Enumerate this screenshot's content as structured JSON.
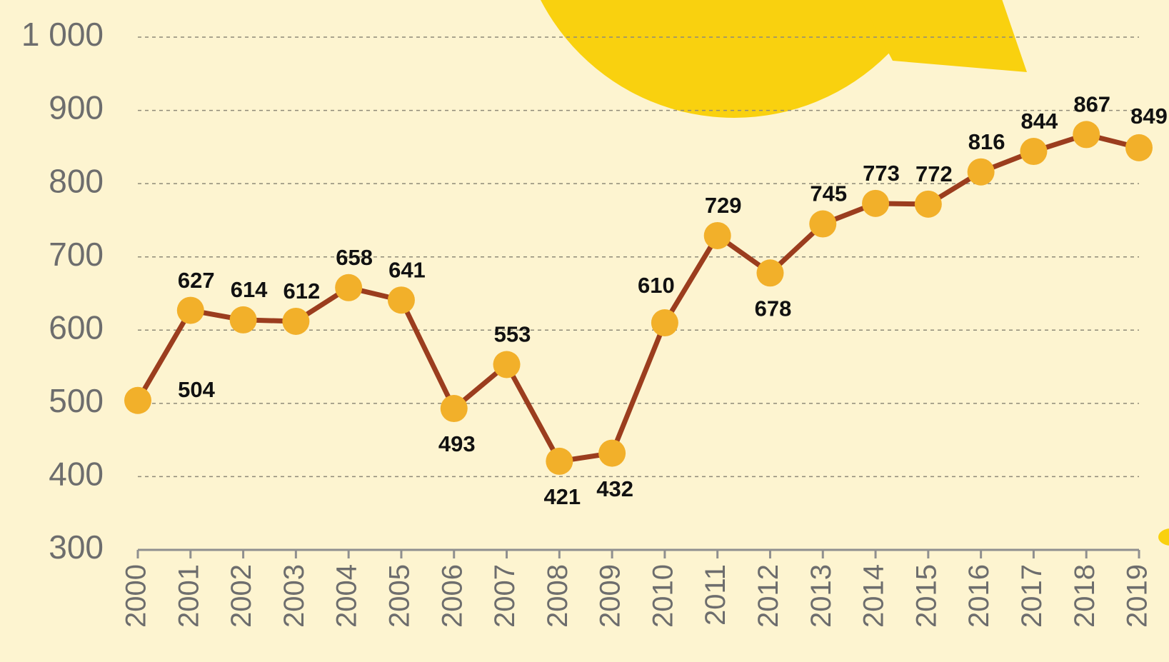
{
  "chart_data": {
    "type": "line",
    "categories": [
      "2000",
      "2001",
      "2002",
      "2003",
      "2004",
      "2005",
      "2006",
      "2007",
      "2008",
      "2009",
      "2010",
      "2011",
      "2012",
      "2013",
      "2014",
      "2015",
      "2016",
      "2017",
      "2018",
      "2019"
    ],
    "values": [
      504,
      627,
      614,
      612,
      658,
      641,
      493,
      553,
      421,
      432,
      610,
      729,
      678,
      745,
      773,
      772,
      816,
      844,
      867,
      849
    ],
    "color": "#9b3d1e",
    "marker_color": "#f2b02a",
    "ylim": [
      300,
      1000
    ],
    "yticks": [
      300,
      400,
      500,
      600,
      700,
      800,
      900,
      {
        "value": 1000,
        "label": "1 000"
      }
    ],
    "grid": true
  }
}
